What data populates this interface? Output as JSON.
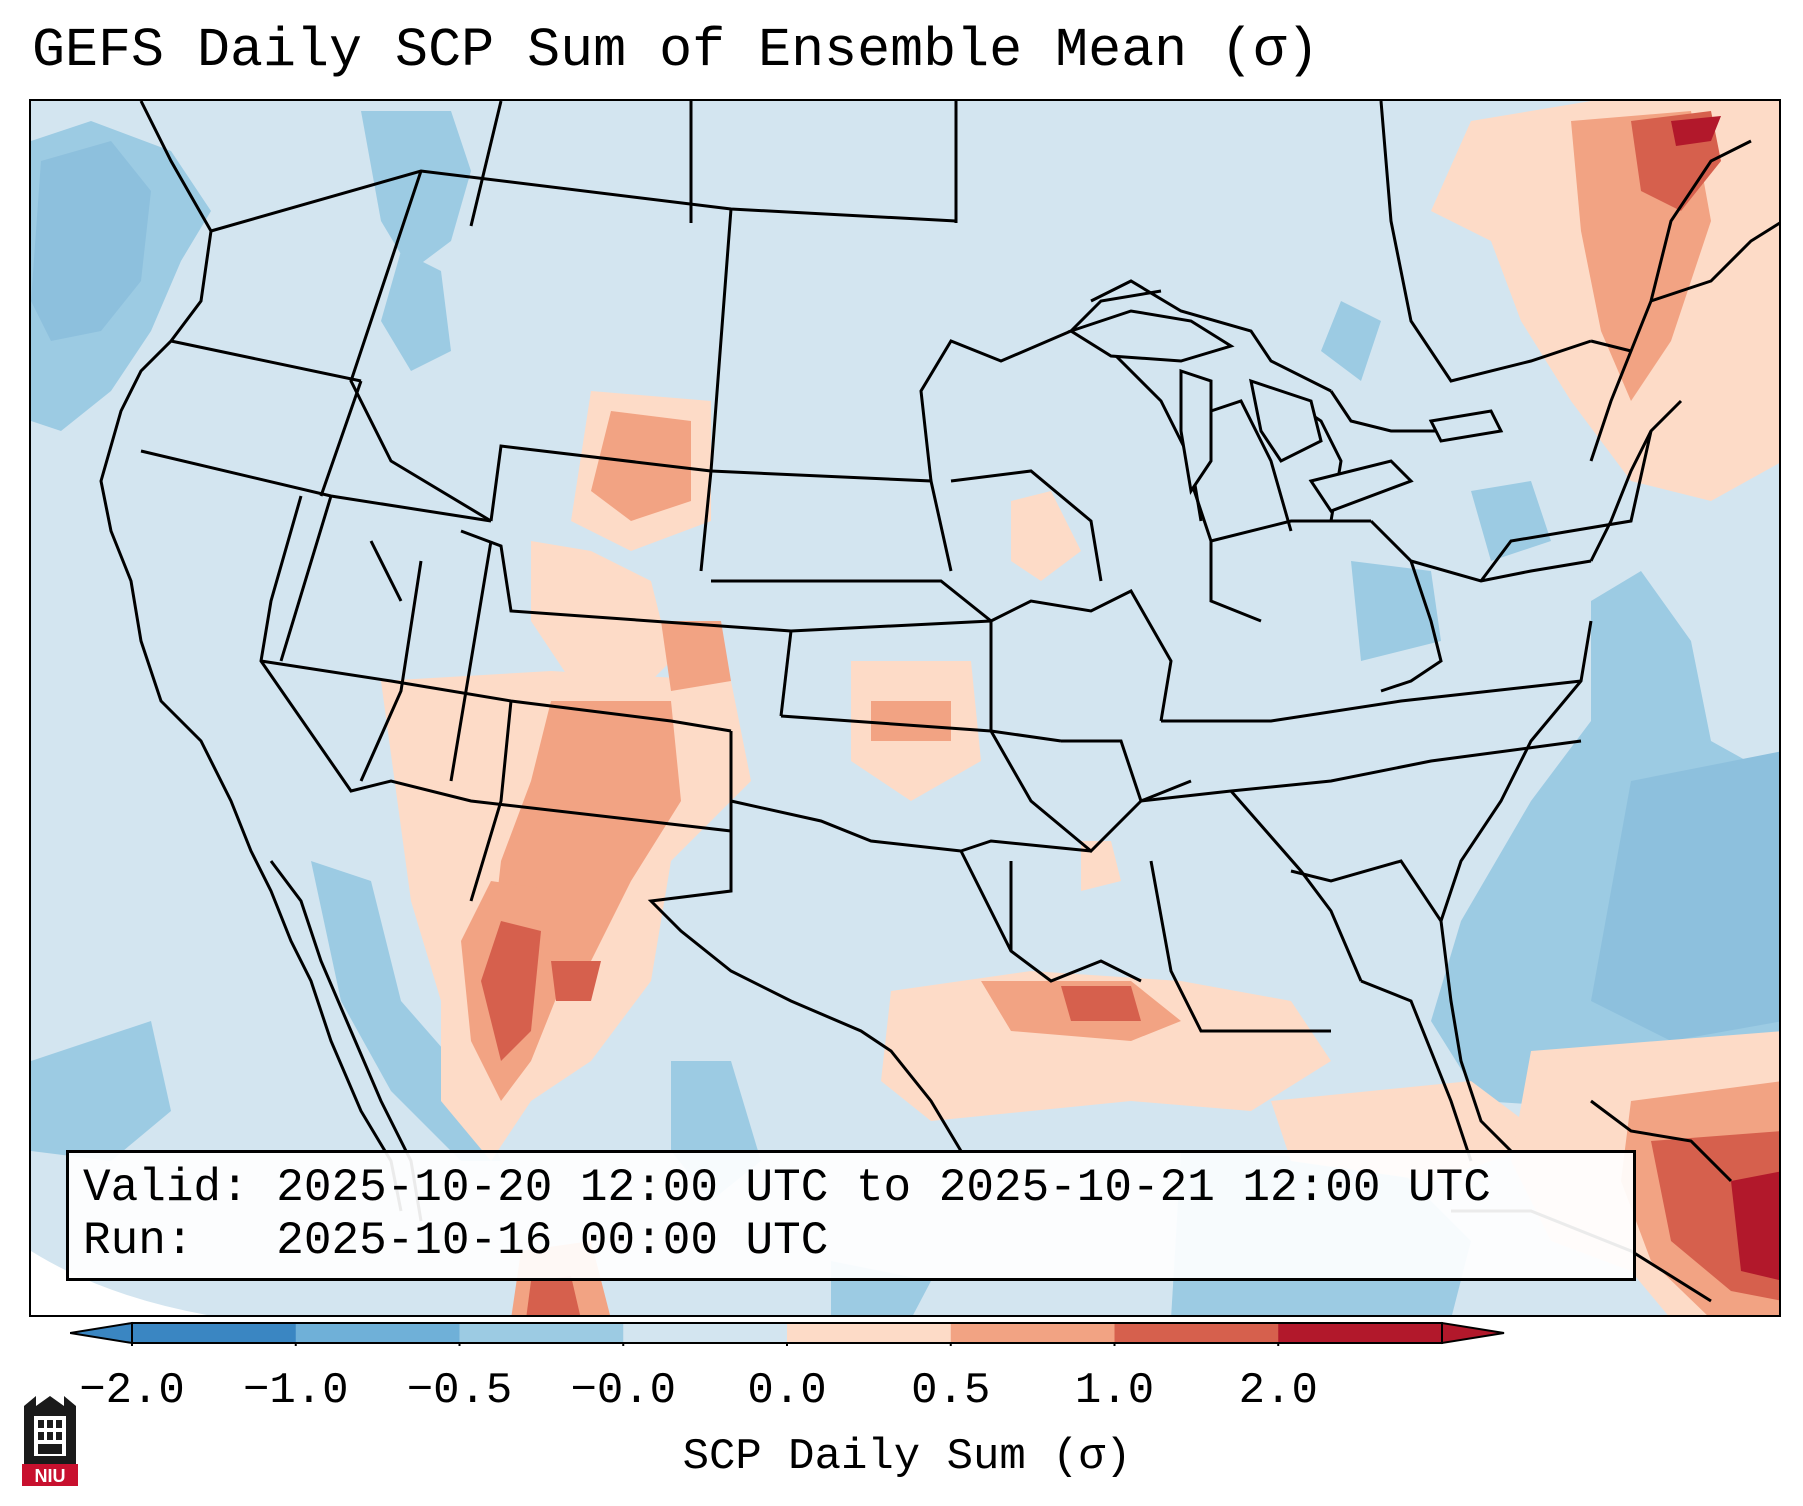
{
  "title": "GEFS Daily SCP Sum of Ensemble Mean (σ)",
  "valid_box": {
    "valid_label": "Valid:",
    "valid_text": "2025-10-20 12:00 UTC to 2025-10-21 12:00 UTC",
    "run_label": "Run:",
    "run_text": "2025-10-16 00:00 UTC"
  },
  "colorbar": {
    "label": "SCP Daily Sum (σ)",
    "ticks": [
      "−2.0",
      "−1.0",
      "−0.5",
      "−0.0",
      "0.0",
      "0.5",
      "1.0",
      "2.0"
    ],
    "colors": [
      "#3a86c2",
      "#6fb0d8",
      "#9ccbe3",
      "#d3e5f0",
      "#fddbc7",
      "#f2a383",
      "#d6604d",
      "#b2182b"
    ],
    "extend": "both"
  },
  "colors": {
    "near_zero_negative": "#d3e5f0",
    "moderate_negative": "#9ccbe3",
    "strong_negative": "#6fb0d8",
    "near_zero_positive": "#fddbc7",
    "moderate_positive": "#f2a383",
    "strong_positive": "#d6604d",
    "extreme_positive": "#b2182b"
  },
  "logo": {
    "text": "NIU",
    "icon": "niu-logo-icon"
  }
}
